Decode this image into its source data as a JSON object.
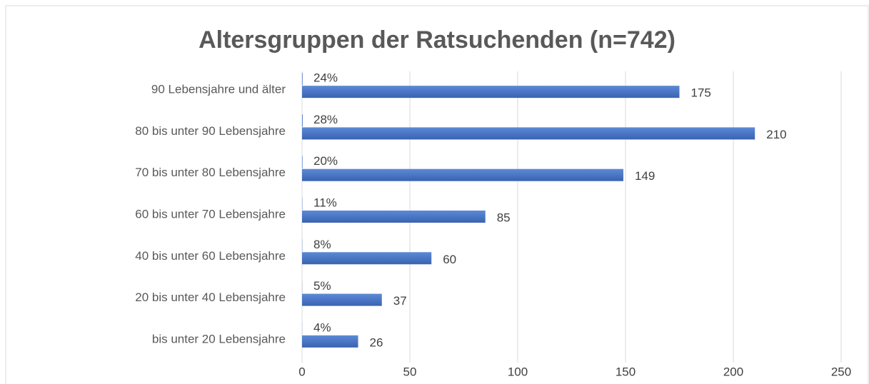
{
  "chart_data": {
    "type": "bar",
    "orientation": "horizontal",
    "title": "Altersgruppen der Ratsuchenden (n=742)",
    "categories": [
      "90 Lebensjahre und älter",
      "80 bis unter 90 Lebensjahre",
      "70 bis unter 80 Lebensjahre",
      "60 bis unter 70 Lebensjahre",
      "40 bis unter 60 Lebensjahre",
      "20 bis unter 40 Lebensjahre ",
      "bis unter 20 Lebensjahre"
    ],
    "series": [
      {
        "color": "#4472c4",
        "values": [
          0.24,
          0.28,
          0.2,
          0.11,
          0.08,
          0.05,
          0.04
        ],
        "value_labels": [
          "24%",
          "28%",
          "20%",
          "11%",
          "8%",
          "5%",
          "4%"
        ]
      },
      {
        "color": "#4472c4",
        "values": [
          175,
          210,
          149,
          85,
          60,
          37,
          26
        ]
      }
    ],
    "xlim": [
      0,
      250
    ],
    "xticks": [
      0,
      50,
      100,
      150,
      200,
      250
    ],
    "grid": true
  }
}
